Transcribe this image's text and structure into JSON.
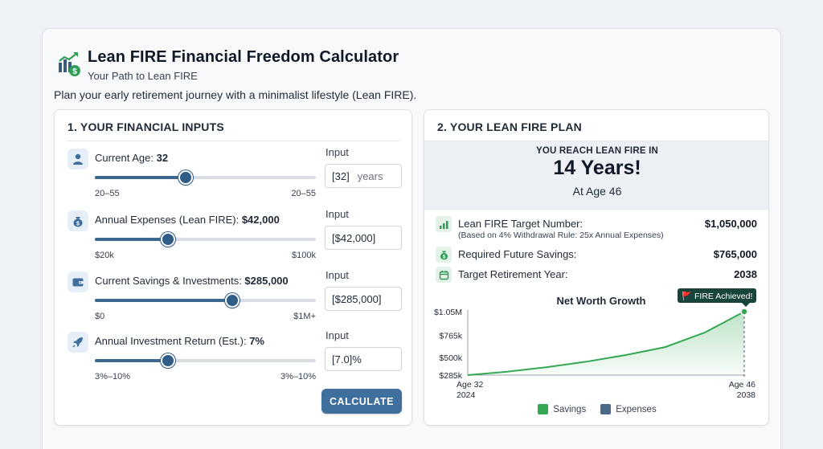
{
  "header": {
    "title": "Lean FIRE Financial Freedom Calculator",
    "subtitle": "Your Path to Lean FIRE",
    "intro": "Plan your early retirement journey with a minimalist lifestyle (Lean FIRE).",
    "logo_icon": "growth-chart-dollar-icon"
  },
  "inputs_panel": {
    "title": "1. YOUR FINANCIAL INPUTS",
    "input_label": "Input",
    "calculate_label": "CALCULATE",
    "rows": [
      {
        "label": "Current Age: ",
        "value": "32",
        "range_min": "20–55",
        "range_max": "20–55",
        "input_value": "[32]",
        "input_unit": "years",
        "slider_level": 0.41,
        "icon": "person-icon"
      },
      {
        "label": "Annual Expenses (Lean FIRE): ",
        "value": "$42,000",
        "range_min": "$20k",
        "range_max": "$100k",
        "input_value": "[$42,000]",
        "input_unit": "",
        "slider_level": 0.33,
        "icon": "money-bag-icon"
      },
      {
        "label": "Current Savings & Investments: ",
        "value": "$285,000",
        "range_min": "$0",
        "range_max": "$1M+",
        "input_value": "[$285,000]",
        "input_unit": "",
        "slider_level": 0.62,
        "icon": "wallet-icon"
      },
      {
        "label": "Annual Investment Return (Est.): ",
        "value": "7%",
        "range_min": "3%–10%",
        "range_max": "3%–10%",
        "input_value": "[7.0]%",
        "input_unit": "",
        "slider_level": 0.33,
        "icon": "rocket-icon"
      }
    ]
  },
  "plan_panel": {
    "title": "2. YOUR LEAN FIRE PLAN",
    "result_head": "YOU REACH LEAN FIRE IN",
    "result_big": "14 Years!",
    "result_sub": "At Age 46",
    "metrics": [
      {
        "label": "Lean FIRE Target Number:",
        "value": "$1,050,000",
        "note": "(Based on 4% Withdrawal Rule: 25x Annual Expenses)",
        "icon": "bar-chart-icon"
      },
      {
        "label": "Required Future Savings:",
        "value": "$765,000",
        "note": "",
        "icon": "money-bag-icon"
      },
      {
        "label": "Target Retirement Year:",
        "value": "2038",
        "note": "",
        "icon": "calendar-icon"
      }
    ]
  },
  "chart_data": {
    "type": "area",
    "title": "Net Worth Growth",
    "y_tick_labels": [
      "$1.05M",
      "$765k",
      "$500k",
      "$285k"
    ],
    "y_ticks": [
      1050000,
      765000,
      500000,
      285000
    ],
    "ylim": [
      285000,
      1050000
    ],
    "x_tick_labels": [
      {
        "age": "Age 32",
        "year": "2024"
      },
      {
        "age": "Age 46",
        "year": "2038"
      }
    ],
    "series": [
      {
        "name": "Savings",
        "color": "#34a853",
        "x": [
          2024,
          2026,
          2028,
          2030,
          2032,
          2034,
          2036,
          2038
        ],
        "values": [
          285000,
          327000,
          381000,
          447000,
          527000,
          623000,
          798000,
          1050000
        ]
      }
    ],
    "legend": [
      {
        "name": "Savings",
        "color": "#34a853"
      },
      {
        "name": "Expenses",
        "color": "#4a6a8a"
      }
    ],
    "annotation": "🚩 FIRE Achieved!",
    "legend_position": "bottom"
  },
  "colors": {
    "accent": "#3f6f9c",
    "savings_green": "#34a853",
    "badge_bg": "#17453b"
  }
}
